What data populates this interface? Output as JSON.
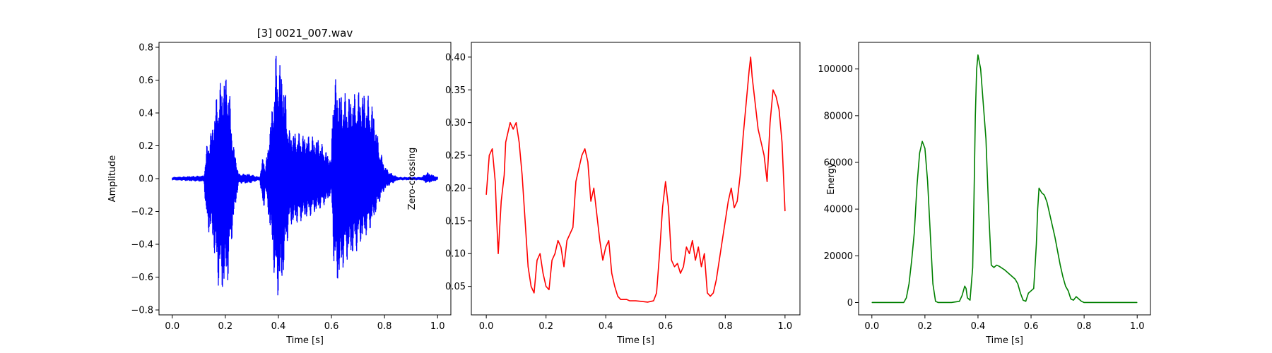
{
  "chart_data": [
    {
      "type": "line",
      "title": "[3] 0021_007.wav",
      "xlabel": "Time [s]",
      "ylabel": "Amplitude",
      "xlim": [
        -0.05,
        1.05
      ],
      "ylim": [
        -0.83,
        0.83
      ],
      "xticks": [
        0.0,
        0.2,
        0.4,
        0.6,
        0.8,
        1.0
      ],
      "xtick_labels": [
        "0.0",
        "0.2",
        "0.4",
        "0.6",
        "0.8",
        "1.0"
      ],
      "yticks": [
        -0.8,
        -0.6,
        -0.4,
        -0.2,
        0.0,
        0.2,
        0.4,
        0.6,
        0.8
      ],
      "ytick_labels": [
        "−0.8",
        "−0.6",
        "−0.4",
        "−0.2",
        "0.0",
        "0.2",
        "0.4",
        "0.6",
        "0.8"
      ],
      "grid": false,
      "series": [
        {
          "color": "#0000ff",
          "envelope": {
            "x": [
              0.0,
              0.12,
              0.13,
              0.15,
              0.17,
              0.19,
              0.21,
              0.23,
              0.25,
              0.29,
              0.33,
              0.34,
              0.345,
              0.35,
              0.38,
              0.39,
              0.4,
              0.41,
              0.42,
              0.44,
              0.5,
              0.55,
              0.58,
              0.6,
              0.605,
              0.61,
              0.62,
              0.63,
              0.64,
              0.65,
              0.66,
              0.68,
              0.72,
              0.75,
              0.76,
              0.78,
              0.8,
              0.82,
              0.85,
              0.94,
              0.96,
              1.0
            ],
            "upper": [
              0.01,
              0.02,
              0.2,
              0.32,
              0.54,
              0.63,
              0.66,
              0.22,
              0.03,
              0.03,
              0.01,
              0.12,
              0.15,
              0.05,
              0.5,
              0.76,
              0.76,
              0.7,
              0.64,
              0.3,
              0.27,
              0.25,
              0.17,
              0.12,
              0.6,
              0.63,
              0.6,
              0.55,
              0.53,
              0.52,
              0.52,
              0.52,
              0.55,
              0.48,
              0.42,
              0.2,
              0.08,
              0.04,
              0.01,
              0.01,
              0.04,
              0.01
            ],
            "lower": [
              -0.01,
              -0.02,
              -0.32,
              -0.35,
              -0.64,
              -0.71,
              -0.63,
              -0.28,
              -0.03,
              -0.03,
              -0.01,
              -0.16,
              -0.22,
              -0.05,
              -0.49,
              -0.75,
              -0.72,
              -0.71,
              -0.58,
              -0.3,
              -0.25,
              -0.2,
              -0.15,
              -0.1,
              -0.33,
              -0.58,
              -0.66,
              -0.63,
              -0.57,
              -0.53,
              -0.5,
              -0.48,
              -0.38,
              -0.3,
              -0.25,
              -0.15,
              -0.07,
              -0.04,
              -0.01,
              -0.01,
              -0.03,
              -0.01
            ]
          }
        }
      ]
    },
    {
      "type": "line",
      "xlabel": "Time [s]",
      "ylabel": "Zero-crossing",
      "xlim": [
        -0.05,
        1.05
      ],
      "ylim": [
        0.0065,
        0.4225
      ],
      "xticks": [
        0.0,
        0.2,
        0.4,
        0.6,
        0.8,
        1.0
      ],
      "xtick_labels": [
        "0.0",
        "0.2",
        "0.4",
        "0.6",
        "0.8",
        "1.0"
      ],
      "yticks": [
        0.05,
        0.1,
        0.15,
        0.2,
        0.25,
        0.3,
        0.35,
        0.4
      ],
      "ytick_labels": [
        "0.05",
        "0.10",
        "0.15",
        "0.20",
        "0.25",
        "0.30",
        "0.35",
        "0.40"
      ],
      "grid": false,
      "series": [
        {
          "color": "#ff0000",
          "x": [
            0.0,
            0.01,
            0.02,
            0.03,
            0.035,
            0.04,
            0.045,
            0.05,
            0.055,
            0.06,
            0.065,
            0.07,
            0.08,
            0.09,
            0.1,
            0.11,
            0.12,
            0.13,
            0.14,
            0.15,
            0.16,
            0.17,
            0.18,
            0.19,
            0.2,
            0.21,
            0.22,
            0.23,
            0.24,
            0.25,
            0.26,
            0.27,
            0.28,
            0.29,
            0.3,
            0.31,
            0.32,
            0.33,
            0.34,
            0.35,
            0.36,
            0.37,
            0.38,
            0.39,
            0.4,
            0.41,
            0.42,
            0.43,
            0.44,
            0.45,
            0.46,
            0.47,
            0.48,
            0.5,
            0.52,
            0.54,
            0.56,
            0.57,
            0.58,
            0.59,
            0.6,
            0.61,
            0.62,
            0.63,
            0.64,
            0.65,
            0.66,
            0.67,
            0.68,
            0.69,
            0.7,
            0.71,
            0.72,
            0.73,
            0.74,
            0.75,
            0.76,
            0.77,
            0.78,
            0.79,
            0.8,
            0.81,
            0.82,
            0.83,
            0.84,
            0.85,
            0.86,
            0.87,
            0.88,
            0.885,
            0.89,
            0.9,
            0.91,
            0.92,
            0.93,
            0.94,
            0.95,
            0.96,
            0.97,
            0.98,
            0.99,
            1.0
          ],
          "y": [
            0.19,
            0.25,
            0.26,
            0.21,
            0.15,
            0.1,
            0.14,
            0.18,
            0.2,
            0.22,
            0.27,
            0.28,
            0.3,
            0.29,
            0.3,
            0.27,
            0.22,
            0.15,
            0.08,
            0.05,
            0.04,
            0.09,
            0.1,
            0.07,
            0.05,
            0.045,
            0.09,
            0.1,
            0.12,
            0.11,
            0.08,
            0.12,
            0.13,
            0.14,
            0.21,
            0.23,
            0.25,
            0.26,
            0.24,
            0.18,
            0.2,
            0.16,
            0.12,
            0.09,
            0.11,
            0.12,
            0.07,
            0.05,
            0.035,
            0.03,
            0.03,
            0.03,
            0.028,
            0.028,
            0.027,
            0.026,
            0.028,
            0.04,
            0.1,
            0.17,
            0.21,
            0.17,
            0.09,
            0.08,
            0.085,
            0.07,
            0.08,
            0.11,
            0.1,
            0.12,
            0.09,
            0.11,
            0.08,
            0.1,
            0.04,
            0.035,
            0.04,
            0.06,
            0.09,
            0.12,
            0.15,
            0.18,
            0.2,
            0.17,
            0.18,
            0.22,
            0.28,
            0.33,
            0.38,
            0.4,
            0.37,
            0.33,
            0.29,
            0.27,
            0.25,
            0.21,
            0.3,
            0.35,
            0.34,
            0.32,
            0.27,
            0.165
          ]
        }
      ]
    },
    {
      "type": "line",
      "xlabel": "Time [s]",
      "ylabel": "Energy",
      "xlim": [
        -0.05,
        1.05
      ],
      "ylim": [
        -5300,
        111400
      ],
      "xticks": [
        0.0,
        0.2,
        0.4,
        0.6,
        0.8,
        1.0
      ],
      "xtick_labels": [
        "0.0",
        "0.2",
        "0.4",
        "0.6",
        "0.8",
        "1.0"
      ],
      "yticks": [
        0,
        20000,
        40000,
        60000,
        80000,
        100000
      ],
      "ytick_labels": [
        "0",
        "20000",
        "40000",
        "60000",
        "80000",
        "100000"
      ],
      "grid": false,
      "series": [
        {
          "color": "#008000",
          "x": [
            0.0,
            0.12,
            0.13,
            0.14,
            0.15,
            0.16,
            0.17,
            0.18,
            0.19,
            0.2,
            0.21,
            0.22,
            0.23,
            0.24,
            0.25,
            0.3,
            0.33,
            0.34,
            0.35,
            0.355,
            0.36,
            0.37,
            0.38,
            0.385,
            0.39,
            0.395,
            0.4,
            0.41,
            0.42,
            0.43,
            0.44,
            0.45,
            0.46,
            0.47,
            0.48,
            0.5,
            0.52,
            0.54,
            0.55,
            0.56,
            0.57,
            0.58,
            0.59,
            0.6,
            0.61,
            0.62,
            0.625,
            0.63,
            0.64,
            0.65,
            0.66,
            0.67,
            0.68,
            0.69,
            0.7,
            0.71,
            0.72,
            0.73,
            0.74,
            0.75,
            0.76,
            0.77,
            0.78,
            0.79,
            0.8,
            1.0
          ],
          "y": [
            0,
            0,
            2000,
            8000,
            18000,
            30000,
            50000,
            64000,
            69000,
            66000,
            52000,
            30000,
            8000,
            500,
            0,
            0,
            500,
            3000,
            7000,
            6000,
            2000,
            1000,
            15000,
            45000,
            80000,
            100000,
            106000,
            100000,
            85000,
            70000,
            40000,
            16000,
            15000,
            16000,
            15500,
            14000,
            12000,
            10000,
            8000,
            4000,
            1000,
            500,
            4000,
            5000,
            6000,
            25000,
            40000,
            49000,
            47000,
            46000,
            43000,
            38000,
            33000,
            28000,
            22000,
            16000,
            11000,
            7000,
            5000,
            1500,
            1000,
            2500,
            1500,
            500,
            0,
            0
          ]
        }
      ]
    }
  ]
}
